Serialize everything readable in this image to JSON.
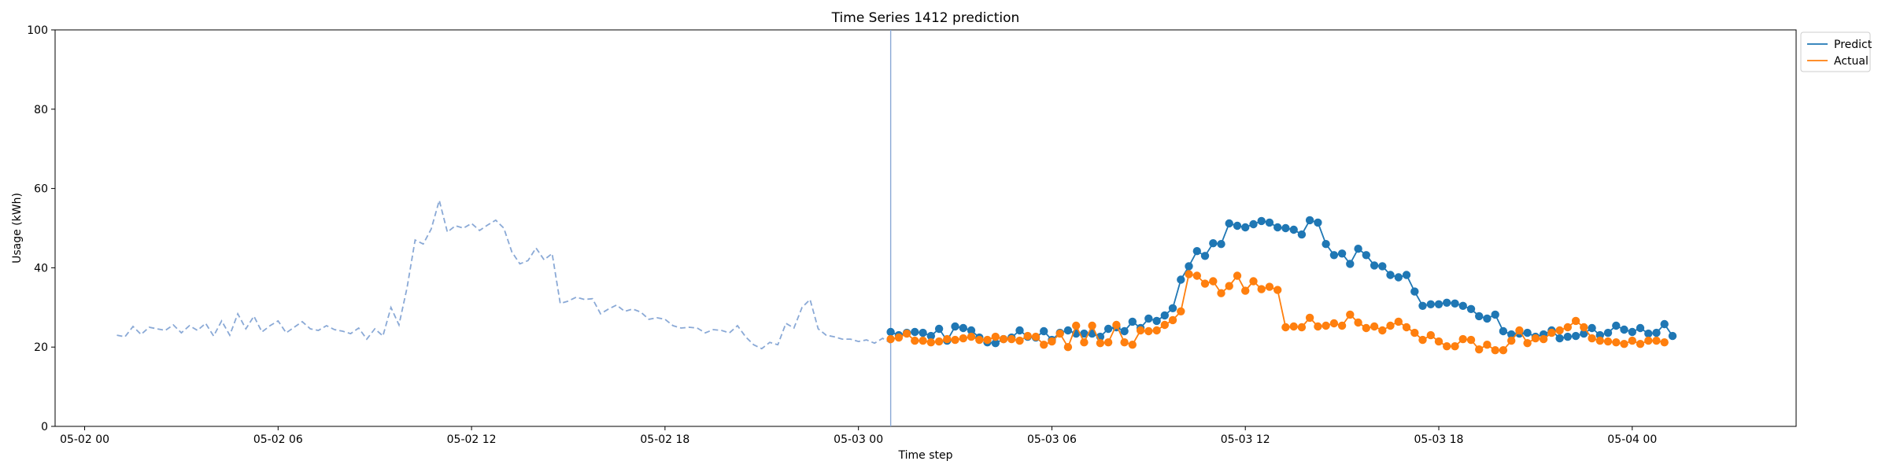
{
  "chart_data": {
    "type": "line",
    "title": "Time Series 1412 prediction",
    "xlabel": "Time step",
    "ylabel": "Usage (kWh)",
    "ylim": [
      0,
      100
    ],
    "yticks": [
      "0",
      "20",
      "40",
      "60",
      "80",
      "100"
    ],
    "xlim": [
      "2025-05-01T23:05",
      "2025-05-04T05:05"
    ],
    "xticks": [
      {
        "t": "2025-05-02T00:00",
        "label": "05-02 00"
      },
      {
        "t": "2025-05-02T06:00",
        "label": "05-02 06"
      },
      {
        "t": "2025-05-02T12:00",
        "label": "05-02 12"
      },
      {
        "t": "2025-05-02T18:00",
        "label": "05-02 18"
      },
      {
        "t": "2025-05-03T00:00",
        "label": "05-03 00"
      },
      {
        "t": "2025-05-03T06:00",
        "label": "05-03 06"
      },
      {
        "t": "2025-05-03T12:00",
        "label": "05-03 12"
      },
      {
        "t": "2025-05-03T18:00",
        "label": "05-03 18"
      },
      {
        "t": "2025-05-04T00:00",
        "label": "05-04 00"
      }
    ],
    "divider": "2025-05-03T01:00",
    "grid": false,
    "legend_position": "upper right, outside plot",
    "colors": {
      "predict": "#1f77b4",
      "actual": "#ff7f0e",
      "history": "#8aa9d6",
      "divider": "#8aa9d6"
    },
    "history": {
      "start": "2025-05-02T01:00",
      "step_minutes": 15,
      "values": [
        23.0,
        22.6,
        25.2,
        23.2,
        25.0,
        24.6,
        24.2,
        25.6,
        23.6,
        25.4,
        24.2,
        26.0,
        22.8,
        26.6,
        23.0,
        28.4,
        24.6,
        27.8,
        23.8,
        25.4,
        26.6,
        23.6,
        25.0,
        26.4,
        24.6,
        24.2,
        25.4,
        24.4,
        24.0,
        23.4,
        24.8,
        22.0,
        24.6,
        22.8,
        30.0,
        25.6,
        35.0,
        47.0,
        46.0,
        49.8,
        57.0,
        49.0,
        50.6,
        50.0,
        51.2,
        49.4,
        50.8,
        52.0,
        50.0,
        44.0,
        41.0,
        41.8,
        45.0,
        42.0,
        43.6,
        31.0,
        31.6,
        32.6,
        32.0,
        32.2,
        28.4,
        29.6,
        30.6,
        29.0,
        29.6,
        28.8,
        27.0,
        27.4,
        27.0,
        25.4,
        24.8,
        25.0,
        24.8,
        23.6,
        24.4,
        24.2,
        23.6,
        25.4,
        22.6,
        20.6,
        19.6,
        21.2,
        20.6,
        26.0,
        24.8,
        30.0,
        32.0,
        24.6,
        23.0,
        22.6,
        22.0,
        22.0,
        21.4,
        21.8,
        21.0,
        22.2,
        21.0
      ]
    },
    "series": [
      {
        "name": "Predict",
        "start": "2025-05-03T01:00",
        "step_minutes": 15,
        "values": [
          23.8,
          23.0,
          23.6,
          23.8,
          23.6,
          22.8,
          24.6,
          21.6,
          25.2,
          24.8,
          24.2,
          22.4,
          21.2,
          21.0,
          22.0,
          22.4,
          24.2,
          22.6,
          22.4,
          24.0,
          21.8,
          23.6,
          24.2,
          23.4,
          23.4,
          23.4,
          22.6,
          24.6,
          25.0,
          24.0,
          26.4,
          24.8,
          27.2,
          26.6,
          28.0,
          29.8,
          37.0,
          40.4,
          44.2,
          43.0,
          46.2,
          46.0,
          51.2,
          50.6,
          50.2,
          51.0,
          51.8,
          51.4,
          50.2,
          50.0,
          49.6,
          48.4,
          52.0,
          51.4,
          46.0,
          43.2,
          43.6,
          41.0,
          44.8,
          43.2,
          40.6,
          40.4,
          38.2,
          37.6,
          38.2,
          34.0,
          30.4,
          30.8,
          30.8,
          31.2,
          31.0,
          30.4,
          29.6,
          27.8,
          27.2,
          28.2,
          24.0,
          23.2,
          23.4,
          23.6,
          22.6,
          23.2,
          24.2,
          22.2,
          22.6,
          22.8,
          23.4,
          24.8,
          23.0,
          23.6,
          25.4,
          24.4,
          23.8,
          24.8,
          23.4,
          23.6,
          25.8,
          22.8
        ]
      },
      {
        "name": "Actual",
        "start": "2025-05-03T01:00",
        "step_minutes": 15,
        "values": [
          22.0,
          22.4,
          23.4,
          21.6,
          21.6,
          21.2,
          21.4,
          22.0,
          21.8,
          22.2,
          22.6,
          21.8,
          21.8,
          22.6,
          22.0,
          22.0,
          21.6,
          22.8,
          22.6,
          20.6,
          21.4,
          23.4,
          20.0,
          25.4,
          21.2,
          25.4,
          21.0,
          21.2,
          25.6,
          21.2,
          20.6,
          24.2,
          24.0,
          24.2,
          25.6,
          26.8,
          29.0,
          38.4,
          38.0,
          36.0,
          36.6,
          33.6,
          35.4,
          38.0,
          34.2,
          36.6,
          34.6,
          35.2,
          34.4,
          25.0,
          25.2,
          25.0,
          27.4,
          25.2,
          25.4,
          26.0,
          25.4,
          28.2,
          26.2,
          24.8,
          25.2,
          24.2,
          25.4,
          26.4,
          25.0,
          23.6,
          21.8,
          23.0,
          21.4,
          20.2,
          20.2,
          22.0,
          21.8,
          19.4,
          20.6,
          19.2,
          19.2,
          21.6,
          24.2,
          21.0,
          22.2,
          22.0,
          23.6,
          24.2,
          25.0,
          26.6,
          25.0,
          22.2,
          21.6,
          21.4,
          21.2,
          20.8,
          21.6,
          20.8,
          21.6,
          21.6,
          21.2
        ]
      }
    ]
  }
}
